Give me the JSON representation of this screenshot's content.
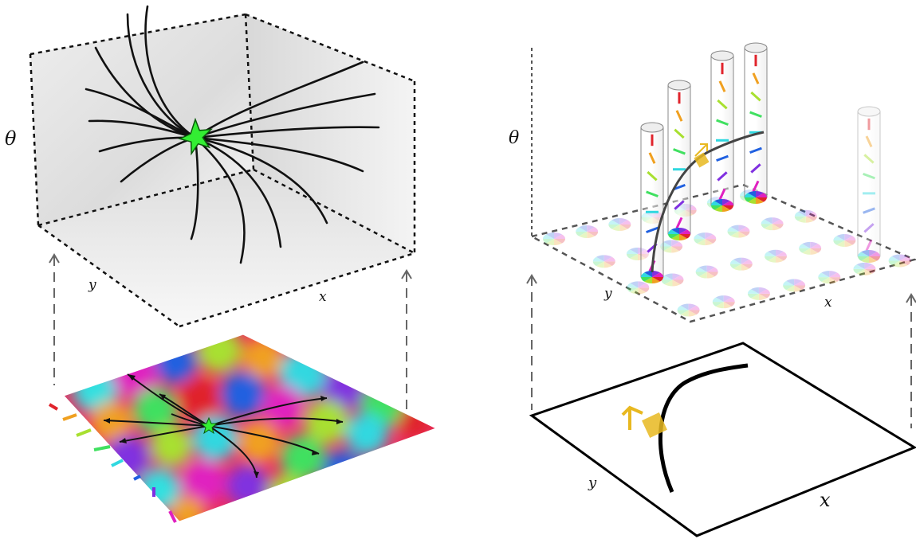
{
  "left_panel": {
    "axis_theta": "θ",
    "axis_y": "y",
    "axis_x": "x"
  },
  "right_panel": {
    "axis_theta": "θ",
    "axis_y": "y",
    "axis_x": "x"
  },
  "colors": {
    "star": "#33ee33",
    "highlight": "#e8b820",
    "orientation_palette": [
      "#e0242c",
      "#f0a020",
      "#a8e030",
      "#40e060",
      "#30d8e0",
      "#2060e0",
      "#8030e0",
      "#e020c0"
    ]
  },
  "icons": [
    "star-icon",
    "arrow-icon"
  ]
}
